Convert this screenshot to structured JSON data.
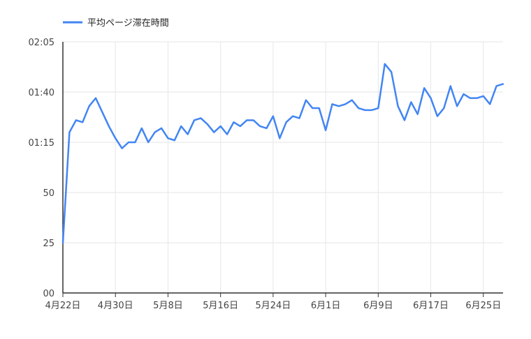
{
  "chart_data": {
    "type": "line",
    "title": "",
    "xlabel": "",
    "ylabel": "",
    "legend_position": "top-left",
    "series": [
      {
        "name": "平均ページ滞在時間",
        "color": "#4285f4",
        "values_seconds": [
          25,
          80,
          86,
          85,
          93,
          97,
          90,
          83,
          77,
          72,
          75,
          75,
          82,
          75,
          80,
          82,
          77,
          76,
          83,
          79,
          86,
          87,
          84,
          80,
          83,
          79,
          85,
          83,
          86,
          86,
          83,
          82,
          88,
          77,
          85,
          88,
          87,
          96,
          92,
          92,
          81,
          94,
          93,
          94,
          96,
          92,
          91,
          91,
          92,
          114,
          110,
          93,
          86,
          95,
          89,
          102,
          97,
          88,
          92,
          103,
          93,
          99,
          97,
          97,
          98,
          94,
          103,
          104
        ]
      }
    ],
    "x_tick_labels": [
      "4月22日",
      "4月30日",
      "5月8日",
      "5月16日",
      "5月24日",
      "6月1日",
      "6月9日",
      "6月17日",
      "6月25日"
    ],
    "x_tick_indices": [
      0,
      8,
      16,
      24,
      32,
      40,
      48,
      56,
      64
    ],
    "y_range_seconds": [
      0,
      125
    ],
    "y_tick_values": [
      0,
      25,
      50,
      75,
      100,
      125
    ],
    "y_tick_labels": [
      "00",
      "25",
      "50",
      "01:15",
      "01:40",
      "02:05"
    ],
    "colors": {
      "line": "#4285f4",
      "grid": "#e6e6e6",
      "axis": "#333333"
    }
  }
}
